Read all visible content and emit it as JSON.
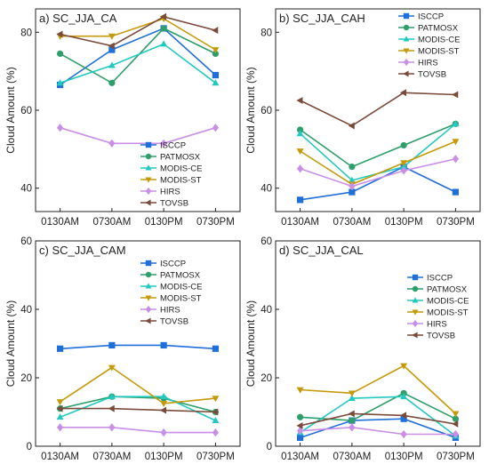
{
  "colors": {
    "ISCCP": "#1f6fd8",
    "PATMOSX": "#2e9e6a",
    "MODIS-CE": "#22c9c0",
    "MODIS-ST": "#c49a0a",
    "HIRS": "#c98fe6",
    "TOVSB": "#7a4a3a"
  },
  "markers": {
    "ISCCP": "square",
    "PATMOSX": "circle",
    "MODIS-CE": "triangle-up",
    "MODIS-ST": "triangle-down",
    "HIRS": "diamond",
    "TOVSB": "triangle-left"
  },
  "chart_data": [
    {
      "type": "line",
      "title": "a) SC_JJA_CA",
      "ylabel": "Cloud Amount (%)",
      "categories": [
        "0130AM",
        "0730AM",
        "0130PM",
        "0730PM"
      ],
      "ylim": [
        34,
        86
      ],
      "yticks": [
        40,
        60,
        80
      ],
      "legend_position": "bottom-right",
      "series": [
        {
          "name": "ISCCP",
          "values": [
            66.5,
            75.5,
            81.0,
            69.0
          ]
        },
        {
          "name": "PATMOSX",
          "values": [
            74.5,
            67.0,
            81.0,
            74.5
          ]
        },
        {
          "name": "MODIS-CE",
          "values": [
            67.0,
            71.5,
            77.0,
            67.0
          ]
        },
        {
          "name": "MODIS-ST",
          "values": [
            79.0,
            79.0,
            83.5,
            75.5
          ]
        },
        {
          "name": "HIRS",
          "values": [
            55.5,
            51.5,
            51.5,
            55.5
          ]
        },
        {
          "name": "TOVSB",
          "values": [
            79.5,
            76.5,
            84.0,
            80.5
          ]
        }
      ]
    },
    {
      "type": "line",
      "title": "b) SC_JJA_CAH",
      "ylabel": "Cloud Amount (%)",
      "categories": [
        "0130AM",
        "0730AM",
        "0130PM",
        "0730PM"
      ],
      "ylim": [
        34,
        86
      ],
      "yticks": [
        40,
        60,
        80
      ],
      "legend_position": "top-right",
      "series": [
        {
          "name": "ISCCP",
          "values": [
            37.0,
            39.0,
            45.5,
            39.0
          ]
        },
        {
          "name": "PATMOSX",
          "values": [
            55.0,
            45.5,
            51.0,
            56.5
          ]
        },
        {
          "name": "MODIS-CE",
          "values": [
            54.0,
            42.0,
            45.5,
            56.5
          ]
        },
        {
          "name": "MODIS-ST",
          "values": [
            49.5,
            41.0,
            46.5,
            52.0
          ]
        },
        {
          "name": "HIRS",
          "values": [
            45.0,
            40.5,
            44.5,
            47.5
          ]
        },
        {
          "name": "TOVSB",
          "values": [
            62.5,
            56.0,
            64.5,
            64.0
          ]
        }
      ]
    },
    {
      "type": "line",
      "title": "c) SC_JJA_CAM",
      "ylabel": "Cloud Amount (%)",
      "categories": [
        "0130AM",
        "0730AM",
        "0130PM",
        "0730PM"
      ],
      "ylim": [
        0,
        60
      ],
      "yticks": [
        0,
        20,
        40,
        60
      ],
      "legend_position": "top-right",
      "series": [
        {
          "name": "ISCCP",
          "values": [
            28.5,
            29.5,
            29.5,
            28.5
          ]
        },
        {
          "name": "PATMOSX",
          "values": [
            11.0,
            14.5,
            14.0,
            10.0
          ]
        },
        {
          "name": "MODIS-CE",
          "values": [
            8.5,
            14.5,
            14.5,
            7.5
          ]
        },
        {
          "name": "MODIS-ST",
          "values": [
            13.0,
            23.0,
            12.5,
            14.0
          ]
        },
        {
          "name": "HIRS",
          "values": [
            5.5,
            5.5,
            4.0,
            4.0
          ]
        },
        {
          "name": "TOVSB",
          "values": [
            11.0,
            11.0,
            10.5,
            10.0
          ]
        }
      ]
    },
    {
      "type": "line",
      "title": "d) SC_JJA_CAL",
      "ylabel": "Cloud Amount (%)",
      "categories": [
        "0130AM",
        "0730AM",
        "0130PM",
        "0730PM"
      ],
      "ylim": [
        0,
        60
      ],
      "yticks": [
        0,
        20,
        40,
        60
      ],
      "legend_position": "top-right",
      "series": [
        {
          "name": "ISCCP",
          "values": [
            2.5,
            7.5,
            8.0,
            2.5
          ]
        },
        {
          "name": "PATMOSX",
          "values": [
            8.5,
            7.5,
            15.5,
            8.0
          ]
        },
        {
          "name": "MODIS-CE",
          "values": [
            4.0,
            14.0,
            14.5,
            3.0
          ]
        },
        {
          "name": "MODIS-ST",
          "values": [
            16.5,
            15.5,
            23.5,
            9.5
          ]
        },
        {
          "name": "HIRS",
          "values": [
            4.5,
            5.5,
            3.5,
            3.5
          ]
        },
        {
          "name": "TOVSB",
          "values": [
            6.0,
            9.5,
            9.0,
            6.5
          ]
        }
      ]
    }
  ]
}
